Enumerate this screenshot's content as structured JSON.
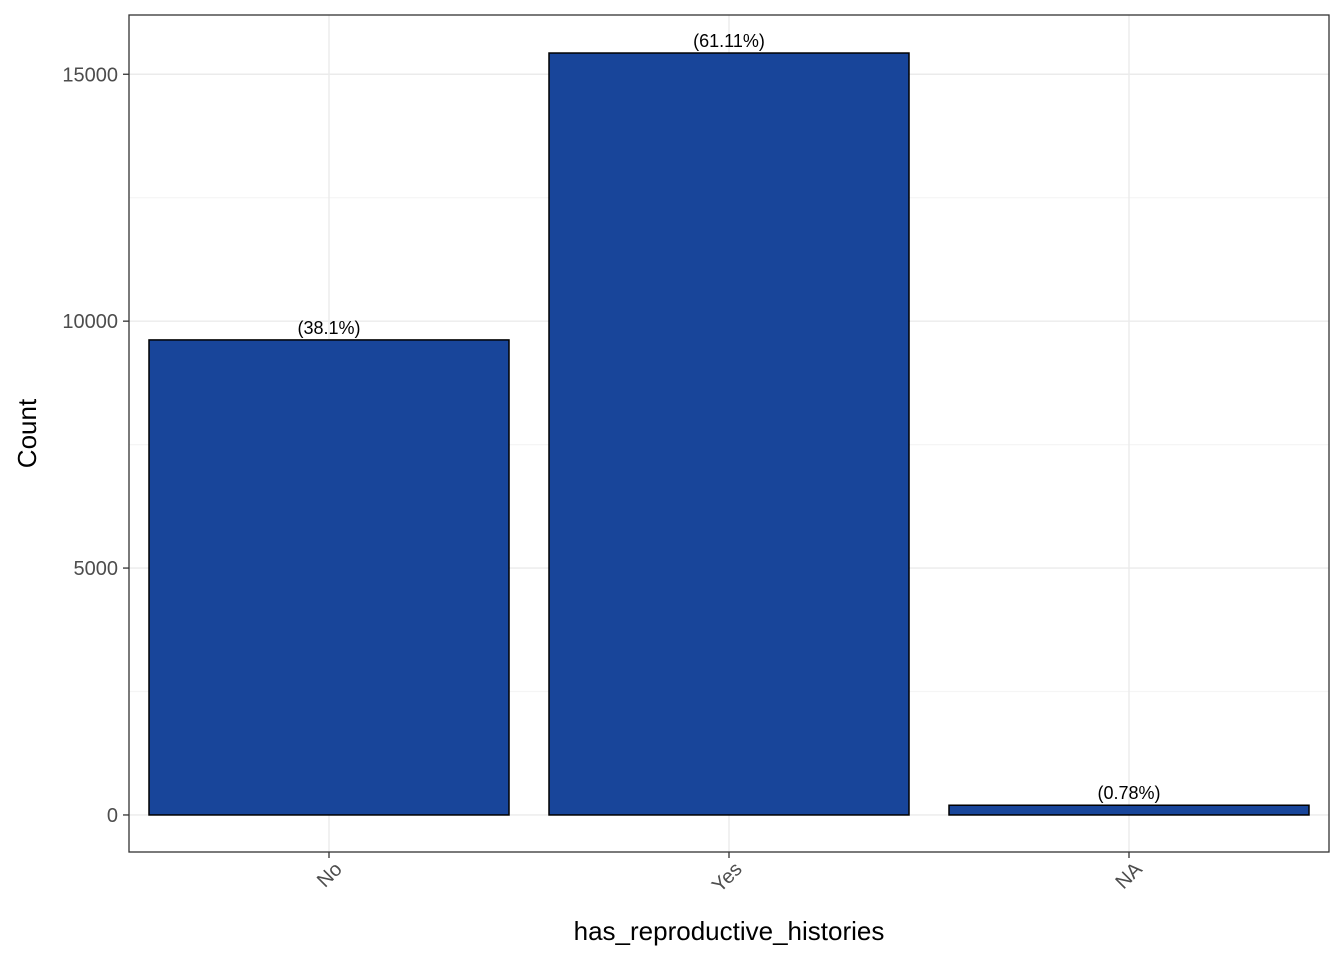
{
  "chart_data": {
    "type": "bar",
    "title": "",
    "xlabel": "has_reproductive_histories",
    "ylabel": "Count",
    "categories": [
      "No",
      "Yes",
      "NA"
    ],
    "values": [
      9620,
      15430,
      197
    ],
    "labels": [
      "(38.1%)",
      "(61.11%)",
      "(0.78%)"
    ],
    "ylim": [
      -750,
      16200
    ],
    "yticks": [
      0,
      5000,
      10000,
      15000
    ],
    "ytick_labels": [
      "0",
      "5000",
      "10000",
      "15000"
    ],
    "grid": true,
    "legend": "none",
    "colors": {
      "bar_fill": "#18459a",
      "bar_stroke": "#000000",
      "grid_major": "#ebebeb",
      "grid_minor": "#f5f5f5",
      "panel_border": "#333333"
    }
  }
}
